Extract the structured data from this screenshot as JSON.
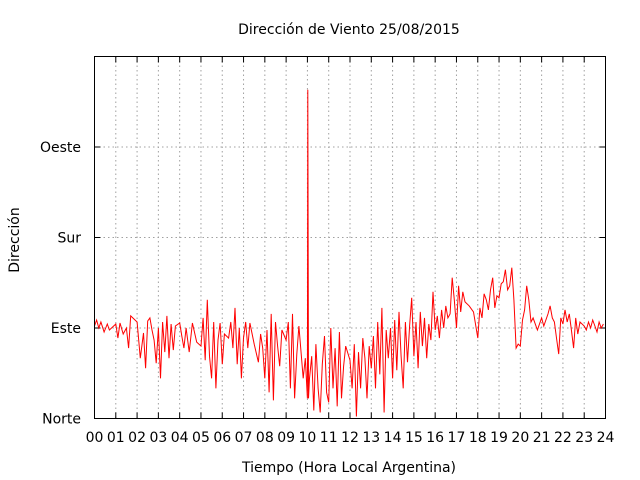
{
  "chart_data": {
    "type": "line",
    "title": "Dirección de Viento 25/08/2015",
    "xlabel": "Tiempo (Hora Local Argentina)",
    "ylabel": "Dirección",
    "x_ticks": [
      "00",
      "01",
      "02",
      "03",
      "04",
      "05",
      "06",
      "07",
      "08",
      "09",
      "10",
      "11",
      "12",
      "13",
      "14",
      "15",
      "16",
      "17",
      "18",
      "19",
      "20",
      "21",
      "22",
      "23",
      "24"
    ],
    "xlim": [
      0,
      24
    ],
    "y_ticks": [
      {
        "label": "Norte",
        "value": 0
      },
      {
        "label": "Este",
        "value": 90
      },
      {
        "label": "Sur",
        "value": 180
      },
      {
        "label": "Oeste",
        "value": 270
      }
    ],
    "ylim": [
      0,
      360
    ],
    "grid": true,
    "series_color": "#ff0000",
    "series": [
      {
        "values_hour_deg": [
          [
            0.0,
            92
          ],
          [
            0.1,
            98
          ],
          [
            0.2,
            90
          ],
          [
            0.3,
            96
          ],
          [
            0.45,
            86
          ],
          [
            0.6,
            94
          ],
          [
            0.7,
            88
          ],
          [
            0.85,
            91
          ],
          [
            1.0,
            94
          ],
          [
            1.1,
            80
          ],
          [
            1.2,
            95
          ],
          [
            1.35,
            84
          ],
          [
            1.5,
            90
          ],
          [
            1.6,
            70
          ],
          [
            1.7,
            102
          ],
          [
            1.9,
            98
          ],
          [
            2.0,
            96
          ],
          [
            2.15,
            60
          ],
          [
            2.3,
            85
          ],
          [
            2.4,
            50
          ],
          [
            2.5,
            97
          ],
          [
            2.6,
            100
          ],
          [
            2.7,
            88
          ],
          [
            2.8,
            78
          ],
          [
            2.9,
            55
          ],
          [
            3.0,
            90
          ],
          [
            3.1,
            40
          ],
          [
            3.2,
            96
          ],
          [
            3.3,
            66
          ],
          [
            3.4,
            102
          ],
          [
            3.5,
            60
          ],
          [
            3.6,
            94
          ],
          [
            3.7,
            68
          ],
          [
            3.8,
            92
          ],
          [
            4.0,
            95
          ],
          [
            4.1,
            82
          ],
          [
            4.2,
            70
          ],
          [
            4.3,
            90
          ],
          [
            4.45,
            66
          ],
          [
            4.6,
            95
          ],
          [
            4.8,
            76
          ],
          [
            5.0,
            72
          ],
          [
            5.1,
            100
          ],
          [
            5.2,
            58
          ],
          [
            5.3,
            118
          ],
          [
            5.4,
            62
          ],
          [
            5.5,
            40
          ],
          [
            5.6,
            96
          ],
          [
            5.7,
            30
          ],
          [
            5.8,
            78
          ],
          [
            5.9,
            95
          ],
          [
            6.0,
            54
          ],
          [
            6.1,
            84
          ],
          [
            6.3,
            80
          ],
          [
            6.4,
            96
          ],
          [
            6.5,
            70
          ],
          [
            6.6,
            110
          ],
          [
            6.7,
            54
          ],
          [
            6.8,
            90
          ],
          [
            6.9,
            40
          ],
          [
            7.0,
            80
          ],
          [
            7.1,
            96
          ],
          [
            7.2,
            70
          ],
          [
            7.3,
            95
          ],
          [
            7.5,
            74
          ],
          [
            7.7,
            56
          ],
          [
            7.8,
            84
          ],
          [
            7.9,
            70
          ],
          [
            8.0,
            40
          ],
          [
            8.1,
            88
          ],
          [
            8.2,
            26
          ],
          [
            8.3,
            104
          ],
          [
            8.4,
            18
          ],
          [
            8.5,
            96
          ],
          [
            8.6,
            72
          ],
          [
            8.7,
            52
          ],
          [
            8.8,
            88
          ],
          [
            9.0,
            78
          ],
          [
            9.1,
            96
          ],
          [
            9.2,
            30
          ],
          [
            9.3,
            104
          ],
          [
            9.4,
            20
          ],
          [
            9.5,
            64
          ],
          [
            9.6,
            92
          ],
          [
            9.8,
            40
          ],
          [
            9.9,
            60
          ],
          [
            10.0,
            20
          ],
          [
            10.02,
            327
          ],
          [
            10.05,
            20
          ],
          [
            10.1,
            40
          ],
          [
            10.2,
            62
          ],
          [
            10.3,
            8
          ],
          [
            10.4,
            74
          ],
          [
            10.5,
            30
          ],
          [
            10.6,
            6
          ],
          [
            10.7,
            54
          ],
          [
            10.8,
            82
          ],
          [
            10.9,
            26
          ],
          [
            11.0,
            16
          ],
          [
            11.1,
            90
          ],
          [
            11.2,
            30
          ],
          [
            11.3,
            70
          ],
          [
            11.4,
            12
          ],
          [
            11.5,
            86
          ],
          [
            11.6,
            20
          ],
          [
            11.7,
            52
          ],
          [
            11.8,
            72
          ],
          [
            12.0,
            58
          ],
          [
            12.1,
            30
          ],
          [
            12.2,
            74
          ],
          [
            12.3,
            2
          ],
          [
            12.4,
            66
          ],
          [
            12.5,
            30
          ],
          [
            12.6,
            80
          ],
          [
            12.7,
            60
          ],
          [
            12.8,
            20
          ],
          [
            12.9,
            72
          ],
          [
            13.0,
            50
          ],
          [
            13.1,
            82
          ],
          [
            13.2,
            30
          ],
          [
            13.3,
            96
          ],
          [
            13.4,
            44
          ],
          [
            13.5,
            110
          ],
          [
            13.6,
            6
          ],
          [
            13.7,
            88
          ],
          [
            13.8,
            60
          ],
          [
            13.9,
            90
          ],
          [
            14.0,
            40
          ],
          [
            14.1,
            98
          ],
          [
            14.2,
            48
          ],
          [
            14.3,
            106
          ],
          [
            14.4,
            62
          ],
          [
            14.5,
            30
          ],
          [
            14.6,
            96
          ],
          [
            14.7,
            56
          ],
          [
            14.8,
            92
          ],
          [
            14.9,
            120
          ],
          [
            15.0,
            62
          ],
          [
            15.1,
            96
          ],
          [
            15.2,
            50
          ],
          [
            15.3,
            106
          ],
          [
            15.4,
            72
          ],
          [
            15.5,
            100
          ],
          [
            15.6,
            60
          ],
          [
            15.7,
            94
          ],
          [
            15.8,
            78
          ],
          [
            15.9,
            126
          ],
          [
            16.0,
            88
          ],
          [
            16.1,
            102
          ],
          [
            16.2,
            80
          ],
          [
            16.3,
            108
          ],
          [
            16.4,
            90
          ],
          [
            16.5,
            112
          ],
          [
            16.6,
            100
          ],
          [
            16.7,
            104
          ],
          [
            16.8,
            140
          ],
          [
            16.9,
            118
          ],
          [
            17.0,
            90
          ],
          [
            17.1,
            132
          ],
          [
            17.2,
            106
          ],
          [
            17.3,
            126
          ],
          [
            17.4,
            116
          ],
          [
            17.6,
            112
          ],
          [
            17.8,
            106
          ],
          [
            18.0,
            80
          ],
          [
            18.1,
            110
          ],
          [
            18.2,
            100
          ],
          [
            18.3,
            124
          ],
          [
            18.4,
            118
          ],
          [
            18.5,
            108
          ],
          [
            18.6,
            128
          ],
          [
            18.7,
            140
          ],
          [
            18.8,
            110
          ],
          [
            18.9,
            122
          ],
          [
            19.0,
            120
          ],
          [
            19.1,
            134
          ],
          [
            19.2,
            136
          ],
          [
            19.3,
            148
          ],
          [
            19.4,
            128
          ],
          [
            19.5,
            132
          ],
          [
            19.6,
            150
          ],
          [
            19.7,
            118
          ],
          [
            19.8,
            70
          ],
          [
            19.9,
            74
          ],
          [
            20.0,
            72
          ],
          [
            20.1,
            98
          ],
          [
            20.2,
            108
          ],
          [
            20.3,
            132
          ],
          [
            20.4,
            118
          ],
          [
            20.5,
            96
          ],
          [
            20.6,
            100
          ],
          [
            20.8,
            88
          ],
          [
            21.0,
            100
          ],
          [
            21.1,
            92
          ],
          [
            21.3,
            104
          ],
          [
            21.4,
            112
          ],
          [
            21.5,
            100
          ],
          [
            21.6,
            96
          ],
          [
            21.7,
            80
          ],
          [
            21.8,
            64
          ],
          [
            21.9,
            100
          ],
          [
            22.0,
            94
          ],
          [
            22.1,
            108
          ],
          [
            22.2,
            96
          ],
          [
            22.3,
            104
          ],
          [
            22.4,
            88
          ],
          [
            22.5,
            70
          ],
          [
            22.6,
            100
          ],
          [
            22.7,
            84
          ],
          [
            22.8,
            96
          ],
          [
            23.0,
            92
          ],
          [
            23.1,
            88
          ],
          [
            23.2,
            96
          ],
          [
            23.3,
            90
          ],
          [
            23.4,
            98
          ],
          [
            23.5,
            92
          ],
          [
            23.6,
            86
          ],
          [
            23.7,
            96
          ],
          [
            23.8,
            90
          ],
          [
            23.9,
            94
          ]
        ]
      }
    ]
  }
}
